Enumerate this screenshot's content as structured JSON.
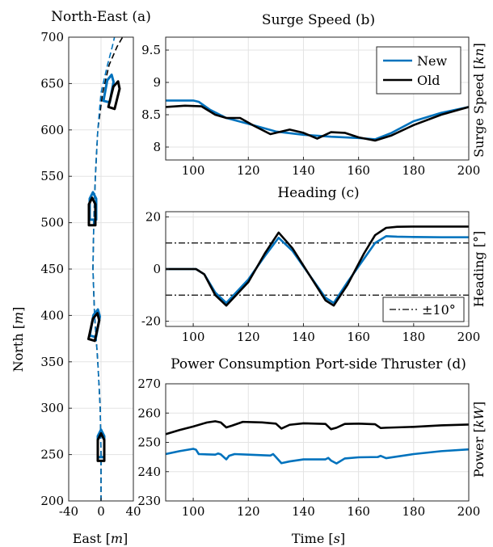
{
  "colors": {
    "new": "#0072BD",
    "old": "#000000"
  },
  "chart_data": [
    {
      "id": "a",
      "type": "line",
      "title": "North-East (a)",
      "xlabel": "East [m]",
      "ylabel": "North [m]",
      "xlim": [
        -40,
        40
      ],
      "ylim": [
        200,
        700
      ],
      "xticks": [
        -40,
        0,
        40
      ],
      "yticks": [
        200,
        250,
        300,
        350,
        400,
        450,
        500,
        550,
        600,
        650,
        700
      ],
      "grid": true,
      "series": [
        {
          "key": "path_old",
          "color": "old",
          "style": "dashed",
          "x": [
            0,
            0,
            -1,
            -4,
            -8,
            -10,
            -9,
            -7,
            -4,
            2,
            10,
            20,
            30
          ],
          "y": [
            200,
            250,
            300,
            350,
            400,
            450,
            500,
            550,
            600,
            640,
            670,
            690,
            705
          ]
        },
        {
          "key": "path_new",
          "color": "new",
          "style": "dashed",
          "x": [
            0,
            0,
            -1,
            -4,
            -8,
            -10,
            -9,
            -7,
            -4,
            0,
            8,
            14,
            18
          ],
          "y": [
            200,
            250,
            300,
            350,
            400,
            450,
            500,
            550,
            600,
            640,
            670,
            690,
            705
          ]
        }
      ],
      "vessels": [
        {
          "series": "new",
          "x": 0,
          "y": 262,
          "heading_deg": 0
        },
        {
          "series": "old",
          "x": 0,
          "y": 258,
          "heading_deg": 0
        },
        {
          "series": "new",
          "x": -7,
          "y": 392,
          "heading_deg": 12
        },
        {
          "series": "old",
          "x": -8,
          "y": 388,
          "heading_deg": 14
        },
        {
          "series": "new",
          "x": -10,
          "y": 518,
          "heading_deg": 0
        },
        {
          "series": "old",
          "x": -11,
          "y": 512,
          "heading_deg": 0
        },
        {
          "series": "new",
          "x": 10,
          "y": 645,
          "heading_deg": 12
        },
        {
          "series": "old",
          "x": 17,
          "y": 638,
          "heading_deg": 16
        }
      ]
    },
    {
      "id": "b",
      "type": "line",
      "title": "Surge Speed (b)",
      "ylabel": "Surge Speed [kn]",
      "xlim": [
        90,
        200
      ],
      "ylim": [
        7.8,
        9.7
      ],
      "xticks": [
        100,
        120,
        140,
        160,
        180,
        200
      ],
      "yticks": [
        8,
        8.5,
        9,
        9.5
      ],
      "grid": true,
      "legend": {
        "position": "top-right",
        "entries": [
          {
            "label": "New",
            "color": "new"
          },
          {
            "label": "Old",
            "color": "old"
          }
        ]
      },
      "series": [
        {
          "key": "new",
          "color": "new",
          "x": [
            90,
            100,
            102,
            106,
            112,
            120,
            130,
            140,
            150,
            160,
            166,
            172,
            180,
            190,
            200
          ],
          "y": [
            8.72,
            8.72,
            8.7,
            8.58,
            8.45,
            8.36,
            8.24,
            8.19,
            8.16,
            8.14,
            8.12,
            8.22,
            8.4,
            8.53,
            8.62
          ]
        },
        {
          "key": "old",
          "color": "old",
          "x": [
            90,
            97,
            103,
            108,
            112,
            117,
            122,
            128,
            135,
            140,
            145,
            150,
            155,
            160,
            166,
            172,
            180,
            190,
            200
          ],
          "y": [
            8.62,
            8.64,
            8.63,
            8.5,
            8.45,
            8.45,
            8.33,
            8.2,
            8.27,
            8.22,
            8.13,
            8.23,
            8.22,
            8.15,
            8.1,
            8.18,
            8.34,
            8.5,
            8.62
          ]
        }
      ]
    },
    {
      "id": "c",
      "type": "line",
      "title": "Heading (c)",
      "ylabel": "Heading [°]",
      "xlim": [
        90,
        200
      ],
      "ylim": [
        -22,
        22
      ],
      "xticks": [
        100,
        120,
        140,
        160,
        180,
        200
      ],
      "yticks": [
        -20,
        0,
        20
      ],
      "grid": true,
      "legend": {
        "position": "bottom-right",
        "entries": [
          {
            "label": "±10°",
            "style": "dashdot",
            "color": "old"
          }
        ]
      },
      "reference_lines": [
        10,
        -10
      ],
      "series": [
        {
          "key": "new",
          "color": "new",
          "x": [
            90,
            101,
            104,
            108,
            112,
            120,
            126,
            131,
            136,
            142,
            148,
            151,
            156,
            162,
            166,
            170,
            174,
            180,
            190,
            200
          ],
          "y": [
            0,
            0,
            -2,
            -9,
            -13,
            -4,
            5,
            12,
            7,
            -2,
            -11,
            -13,
            -5,
            4,
            10,
            12.6,
            12.4,
            12.3,
            12.2,
            12.2
          ]
        },
        {
          "key": "old",
          "color": "old",
          "x": [
            90,
            101,
            104,
            108,
            112,
            120,
            126,
            131,
            136,
            142,
            148,
            151,
            156,
            162,
            166,
            170,
            174,
            180,
            190,
            200
          ],
          "y": [
            0,
            0,
            -2,
            -10,
            -14,
            -5,
            6,
            14,
            8,
            -2,
            -12,
            -14,
            -6,
            6,
            13,
            15.8,
            16.2,
            16.3,
            16.3,
            16.3
          ]
        }
      ]
    },
    {
      "id": "d",
      "type": "line",
      "title": "Power Consumption Port-side Thruster (d)",
      "xlabel": "Time [s]",
      "ylabel": "Power [kW]",
      "xlim": [
        90,
        200
      ],
      "ylim": [
        230,
        270
      ],
      "xticks": [
        100,
        120,
        140,
        160,
        180,
        200
      ],
      "yticks": [
        230,
        240,
        250,
        260,
        270
      ],
      "grid": true,
      "series": [
        {
          "key": "new",
          "color": "new",
          "x": [
            90,
            95,
            100,
            101,
            102,
            108,
            109,
            110,
            112,
            113,
            115,
            120,
            128,
            129,
            130,
            132,
            135,
            140,
            148,
            149,
            150,
            152,
            155,
            160,
            167,
            168,
            170,
            180,
            190,
            200
          ],
          "y": [
            246,
            247,
            247.8,
            247.5,
            246.0,
            245.8,
            246.2,
            245.9,
            244.2,
            245.4,
            246.0,
            245.8,
            245.5,
            246.0,
            245.0,
            242.9,
            243.5,
            244.2,
            244.2,
            244.7,
            243.8,
            242.8,
            244.5,
            244.9,
            245.0,
            245.4,
            244.6,
            246.0,
            247.0,
            247.6
          ]
        },
        {
          "key": "old",
          "color": "old",
          "x": [
            90,
            95,
            100,
            105,
            108,
            110,
            112,
            114,
            118,
            125,
            130,
            132,
            135,
            140,
            148,
            150,
            152,
            155,
            160,
            166,
            168,
            170,
            180,
            190,
            200
          ],
          "y": [
            252.8,
            254.2,
            255.4,
            256.8,
            257.2,
            256.8,
            255.1,
            255.7,
            257.0,
            256.8,
            256.4,
            254.7,
            256.0,
            256.5,
            256.3,
            254.5,
            255.0,
            256.3,
            256.4,
            256.2,
            254.9,
            255.0,
            255.3,
            255.8,
            256.1
          ]
        }
      ]
    }
  ]
}
